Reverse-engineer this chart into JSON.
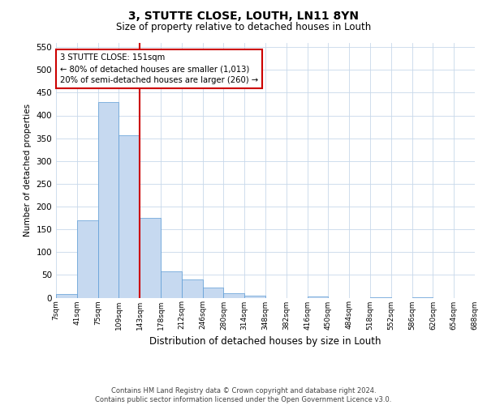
{
  "title": "3, STUTTE CLOSE, LOUTH, LN11 8YN",
  "subtitle": "Size of property relative to detached houses in Louth",
  "xlabel": "Distribution of detached houses by size in Louth",
  "ylabel": "Number of detached properties",
  "bin_labels": [
    "7sqm",
    "41sqm",
    "75sqm",
    "109sqm",
    "143sqm",
    "178sqm",
    "212sqm",
    "246sqm",
    "280sqm",
    "314sqm",
    "348sqm",
    "382sqm",
    "416sqm",
    "450sqm",
    "484sqm",
    "518sqm",
    "552sqm",
    "586sqm",
    "620sqm",
    "654sqm",
    "688sqm"
  ],
  "bar_values": [
    8,
    170,
    430,
    357,
    175,
    57,
    40,
    22,
    10,
    5,
    0,
    0,
    2,
    0,
    0,
    1,
    0,
    1,
    0,
    0
  ],
  "bar_color": "#c6d9f0",
  "bar_edge_color": "#5b9bd5",
  "vline_bin_index": 4,
  "vline_color": "#cc0000",
  "annotation_line1": "3 STUTTE CLOSE: 151sqm",
  "annotation_line2": "← 80% of detached houses are smaller (1,013)",
  "annotation_line3": "20% of semi-detached houses are larger (260) →",
  "annotation_box_color": "#cc0000",
  "ylim": [
    0,
    560
  ],
  "yticks": [
    0,
    50,
    100,
    150,
    200,
    250,
    300,
    350,
    400,
    450,
    500,
    550
  ],
  "footer_text": "Contains HM Land Registry data © Crown copyright and database right 2024.\nContains public sector information licensed under the Open Government Licence v3.0.",
  "background_color": "#ffffff",
  "grid_color": "#c8d8ea"
}
